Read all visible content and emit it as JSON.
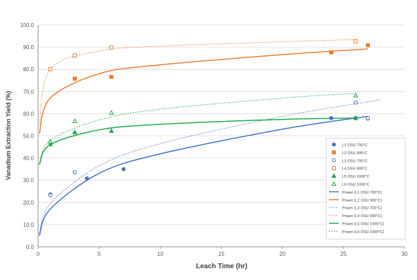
{
  "chart_data": {
    "type": "scatter",
    "xlabel": "Leach Time (hr)",
    "ylabel": "Vanadium Extraction Yield (%)",
    "xlim": [
      0,
      30
    ],
    "ylim": [
      0,
      100
    ],
    "x_ticks": [
      "0",
      "5",
      "10",
      "15",
      "20",
      "25",
      "30"
    ],
    "y_ticks": [
      "0.0",
      "10.0",
      "20.0",
      "30.0",
      "40.0",
      "50.0",
      "60.0",
      "70.0",
      "80.0",
      "90.0",
      "100.0"
    ],
    "grid": "horizontal",
    "legend_position": "bottom-right, inside",
    "series": [
      {
        "name": "L1 OSU 700°C",
        "marker": "circle-filled",
        "color": "#4472c4",
        "x": [
          1,
          4,
          7,
          24,
          26,
          27
        ],
        "y": [
          23.6,
          30.8,
          35.0,
          58.0,
          58.0,
          57.8
        ]
      },
      {
        "name": "L2 OSU 900°C",
        "marker": "square-filled",
        "color": "#ed7d31",
        "x": [
          3,
          6,
          24,
          27
        ],
        "y": [
          75.8,
          76.6,
          87.6,
          90.8
        ]
      },
      {
        "name": "L3 OSU 700°C",
        "marker": "circle-open",
        "color": "#4472c4",
        "x": [
          1,
          3,
          26,
          27
        ],
        "y": [
          23.2,
          33.6,
          65.0,
          58.0
        ]
      },
      {
        "name": "L4 OSU 900°C",
        "marker": "square-open",
        "color": "#ed7d31",
        "x": [
          1,
          3,
          6,
          26
        ],
        "y": [
          80.0,
          86.2,
          89.8,
          92.6
        ]
      },
      {
        "name": "L5 OSU 1000°C",
        "marker": "triangle-filled",
        "color": "#1ea84a",
        "x": [
          1,
          3,
          6,
          26
        ],
        "y": [
          46.2,
          51.6,
          52.2,
          58.0
        ]
      },
      {
        "name": "L6 OSU 1000°C",
        "marker": "triangle-open",
        "color": "#1ea84a",
        "x": [
          1,
          3,
          6,
          26
        ],
        "y": [
          47.4,
          56.6,
          60.4,
          68.2
        ]
      }
    ],
    "trendlines": [
      {
        "name": "Power (L1 OSU 700°C)",
        "style": "solid",
        "color": "#4472c4",
        "x": [
          0.1,
          1,
          5,
          10,
          20,
          27
        ],
        "y": [
          5.0,
          17.0,
          33.1,
          41.9,
          53.0,
          58.8
        ]
      },
      {
        "name": "Power (L2 OSU 900°C)",
        "style": "solid",
        "color": "#ed7d31",
        "x": [
          0.1,
          1,
          5,
          10,
          20,
          27
        ],
        "y": [
          51.0,
          67.0,
          78.0,
          82.0,
          86.6,
          89.2
        ]
      },
      {
        "name": "Power (L3 OSU 700°C)",
        "style": "dotted",
        "color": "#4472c4",
        "x": [
          0.1,
          1,
          5,
          10,
          20,
          28
        ],
        "y": [
          6.0,
          19.5,
          36.5,
          46.5,
          58.8,
          66.2
        ]
      },
      {
        "name": "Power (L4 OSU 900°C)",
        "style": "dotted",
        "color": "#ed7d31",
        "x": [
          0.1,
          1,
          5,
          10,
          20,
          26
        ],
        "y": [
          55.0,
          80.0,
          88.2,
          90.4,
          92.4,
          93.4
        ]
      },
      {
        "name": "Power (L5 OSU 1000°C)",
        "style": "solid",
        "color": "#1ea84a",
        "x": [
          0.1,
          1,
          5,
          10,
          20,
          26
        ],
        "y": [
          37.0,
          46.0,
          52.7,
          55.2,
          57.4,
          58.0
        ]
      },
      {
        "name": "Power (L6 OSU 1000°C)",
        "style": "dotted",
        "color": "#1ea84a",
        "x": [
          0.1,
          1,
          5,
          10,
          20,
          26
        ],
        "y": [
          37.5,
          48.0,
          57.2,
          62.0,
          67.0,
          69.2
        ]
      }
    ]
  }
}
